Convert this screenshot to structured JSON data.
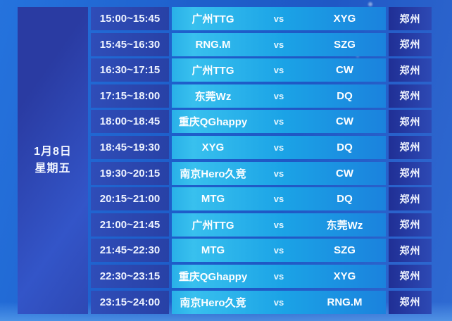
{
  "date_panel": {
    "date": "1月8日",
    "weekday": "星期五"
  },
  "schedule": {
    "vs_label": "vs",
    "rows": [
      {
        "time": "15:00~15:45",
        "team1": "广州TTG",
        "team2": "XYG",
        "venue": "郑州"
      },
      {
        "time": "15:45~16:30",
        "team1": "RNG.M",
        "team2": "SZG",
        "venue": "郑州"
      },
      {
        "time": "16:30~17:15",
        "team1": "广州TTG",
        "team2": "CW",
        "venue": "郑州"
      },
      {
        "time": "17:15~18:00",
        "team1": "东莞Wz",
        "team2": "DQ",
        "venue": "郑州"
      },
      {
        "time": "18:00~18:45",
        "team1": "重庆QGhappy",
        "team2": "CW",
        "venue": "郑州"
      },
      {
        "time": "18:45~19:30",
        "team1": "XYG",
        "team2": "DQ",
        "venue": "郑州"
      },
      {
        "time": "19:30~20:15",
        "team1": "南京Hero久竞",
        "team2": "CW",
        "venue": "郑州"
      },
      {
        "time": "20:15~21:00",
        "team1": "MTG",
        "team2": "DQ",
        "venue": "郑州"
      },
      {
        "time": "21:00~21:45",
        "team1": "广州TTG",
        "team2": "东莞Wz",
        "venue": "郑州"
      },
      {
        "time": "21:45~22:30",
        "team1": "MTG",
        "team2": "SZG",
        "venue": "郑州"
      },
      {
        "time": "22:30~23:15",
        "team1": "重庆QGhappy",
        "team2": "XYG",
        "venue": "郑州"
      },
      {
        "time": "23:15~24:00",
        "team1": "南京Hero久竞",
        "team2": "RNG.M",
        "venue": "郑州"
      }
    ]
  },
  "colors": {
    "background_left": "#2573dd",
    "background_right": "#2e6ad2",
    "date_cell": "#2e48b4",
    "time_cell": "#2b46ae",
    "match_cell_left": "#38c0ee",
    "match_cell_right": "#1b82dd",
    "venue_cell": "#24389e",
    "text": "#ffffff"
  }
}
